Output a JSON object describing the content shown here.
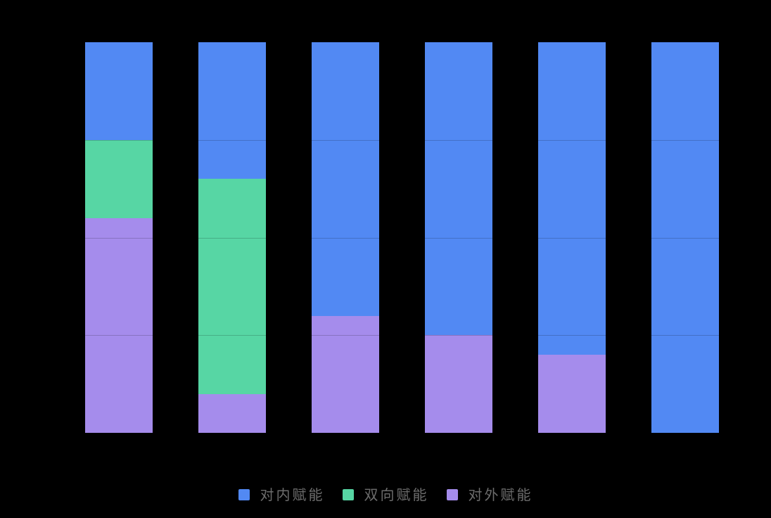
{
  "background_color": "#000000",
  "legend": {
    "text_color": "#6C6C6C",
    "items": [
      {
        "label": "对内赋能",
        "color": "#5289F3"
      },
      {
        "label": "双向赋能",
        "color": "#57D6A4"
      },
      {
        "label": "对外赋能",
        "color": "#A58CEC"
      }
    ]
  },
  "chart_data": {
    "type": "bar",
    "variant": "stacked-percentage-column",
    "title": "",
    "xlabel": "",
    "ylabel": "",
    "categories": [
      "",
      "",
      "",
      "",
      "",
      ""
    ],
    "series": [
      {
        "name": "对内赋能",
        "color": "#5289F3",
        "values": [
          25,
          35,
          70,
          75,
          80,
          100
        ]
      },
      {
        "name": "双向赋能",
        "color": "#57D6A4",
        "values": [
          20,
          55,
          0,
          0,
          0,
          0
        ]
      },
      {
        "name": "对外赋能",
        "color": "#A58CEC",
        "values": [
          55,
          10,
          30,
          25,
          20,
          0
        ]
      }
    ],
    "stack_order_top_to_bottom": [
      "对内赋能",
      "双向赋能",
      "对外赋能"
    ],
    "unit": "percent",
    "ylim": [
      0,
      100
    ],
    "gridlines_percent": [
      25,
      50,
      75
    ],
    "grid": "faint horizontal lines visible through bars",
    "axis_tick_labels_visible": false,
    "legend_position": "bottom"
  }
}
